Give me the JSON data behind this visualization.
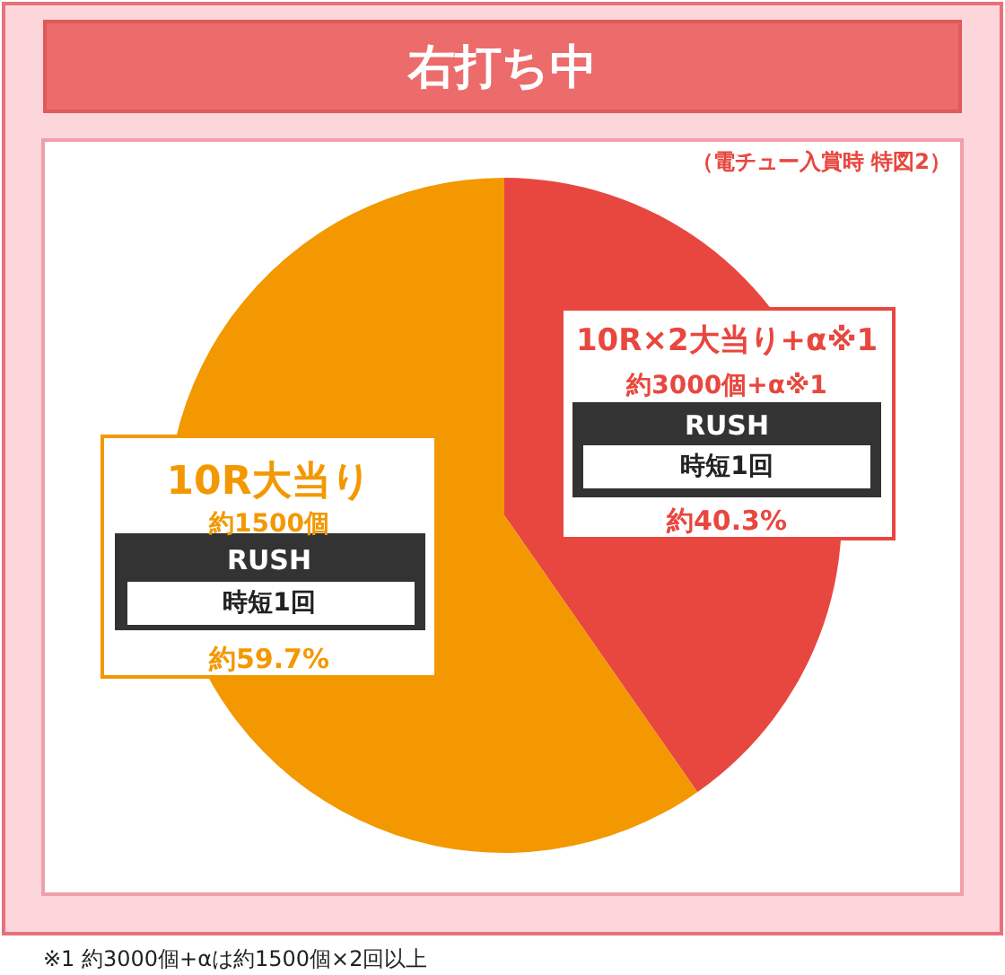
{
  "chart_data": {
    "type": "pie",
    "title": "右打ち中",
    "subtitle": "（電チュー入賞時 特図2）",
    "categories": [
      "10R×2大当り+α※1",
      "10R大当り"
    ],
    "values": [
      40.3,
      59.7
    ],
    "colors": [
      "#e8473f",
      "#f39800"
    ],
    "value_labels": [
      "約40.3%",
      "約59.7%"
    ],
    "annotations": [
      "約3000個+α※1",
      "RUSH",
      "時短1回",
      "約1500個",
      "RUSH",
      "時短1回",
      "※1 約3000個+αは約1500個×2回以上"
    ]
  }
}
